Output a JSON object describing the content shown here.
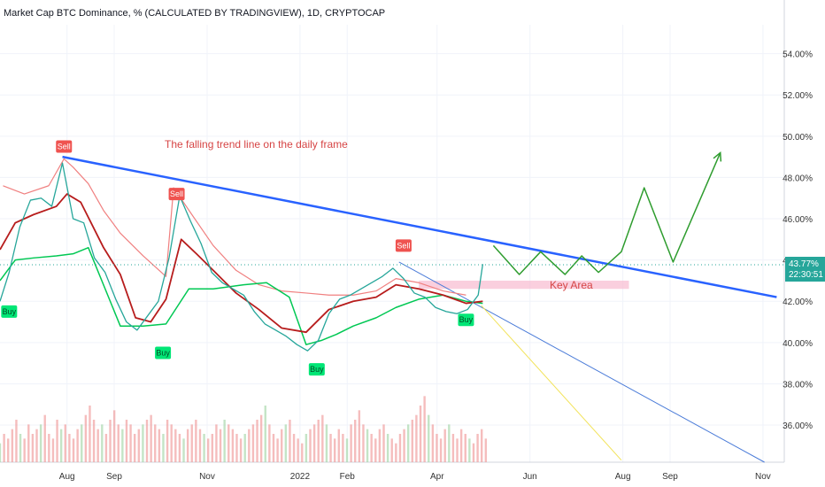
{
  "window": {
    "title": "Market Cap BTC Dominance, % (CALCULATED BY TRADINGVIEW), 1D, CRYPTOCAP"
  },
  "chart_data": {
    "type": "line",
    "title": "Market Cap BTC Dominance, % (CALCULATED BY TRADINGVIEW), 1D, CRYPTOCAP",
    "xlabel": "",
    "ylabel": "",
    "x_ticks": [
      "Aug",
      "Sep",
      "Nov",
      "2022",
      "Feb",
      "Apr",
      "Jun",
      "Aug",
      "Sep",
      "Nov"
    ],
    "y_ticks": [
      "54.00%",
      "52.00%",
      "50.00%",
      "48.00%",
      "46.00%",
      "44.00%",
      "42.00%",
      "40.00%",
      "38.00%",
      "36.00%"
    ],
    "ylim": [
      34.2,
      55.4
    ],
    "current_price": "43.77%",
    "countdown": "22:30:51",
    "annotations": {
      "trend_note": "The falling trend line on the daily frame",
      "key_area": "Key Area"
    },
    "signals": [
      {
        "label": "Sell",
        "x": "2021-07-30",
        "y": 49.5
      },
      {
        "label": "Sell",
        "x": "2021-10-12",
        "y": 47.2
      },
      {
        "label": "Sell",
        "x": "2022-03-10",
        "y": 44.7
      },
      {
        "label": "Buy",
        "x": "2021-06-24",
        "y": 41.5
      },
      {
        "label": "Buy",
        "x": "2021-10-03",
        "y": 39.5
      },
      {
        "label": "Buy",
        "x": "2022-01-12",
        "y": 38.7
      },
      {
        "label": "Buy",
        "x": "2022-04-20",
        "y": 41.1
      }
    ],
    "series": [
      {
        "name": "",
        "color": "#2962ff",
        "points": [
          [
            "2021-07-29",
            49.0
          ],
          [
            "2022-11-10",
            42.2
          ]
        ]
      },
      {
        "name": "",
        "color": "#2e9c2e",
        "points": [
          [
            "2022-05-08",
            44.7
          ],
          [
            "2022-05-25",
            43.3
          ],
          [
            "2022-06-08",
            44.4
          ],
          [
            "2022-06-24",
            43.3
          ],
          [
            "2022-07-05",
            44.2
          ],
          [
            "2022-07-16",
            43.4
          ],
          [
            "2022-07-31",
            44.4
          ],
          [
            "2022-08-15",
            47.5
          ],
          [
            "2022-09-03",
            43.9
          ],
          [
            "2022-10-04",
            49.2
          ]
        ]
      },
      {
        "name": "",
        "color": "#4a7bd8",
        "points": [
          [
            "2022-03-07",
            43.9
          ],
          [
            "2022-11-02",
            34.2
          ]
        ]
      },
      {
        "name": "",
        "color": "#f2e35a",
        "points": [
          [
            "2022-04-30",
            41.8
          ],
          [
            "2022-07-31",
            34.3
          ]
        ]
      },
      {
        "name": "",
        "color": "#f08080",
        "points": [
          [
            "2021-06-20",
            47.6
          ],
          [
            "2021-07-04",
            47.2
          ],
          [
            "2021-07-20",
            47.6
          ],
          [
            "2021-07-30",
            48.9
          ],
          [
            "2021-08-05",
            48.5
          ],
          [
            "2021-08-15",
            47.7
          ],
          [
            "2021-08-25",
            46.4
          ],
          [
            "2021-09-05",
            45.3
          ],
          [
            "2021-09-20",
            44.2
          ],
          [
            "2021-10-05",
            43.2
          ],
          [
            "2021-10-10",
            47.5
          ],
          [
            "2021-10-22",
            46.2
          ],
          [
            "2021-11-05",
            44.7
          ],
          [
            "2021-11-20",
            43.5
          ],
          [
            "2021-12-05",
            42.8
          ],
          [
            "2021-12-20",
            42.5
          ],
          [
            "2022-01-05",
            42.4
          ],
          [
            "2022-01-20",
            42.3
          ],
          [
            "2022-02-05",
            42.3
          ],
          [
            "2022-02-20",
            42.5
          ],
          [
            "2022-03-05",
            43.1
          ],
          [
            "2022-03-20",
            42.9
          ],
          [
            "2022-04-05",
            42.5
          ],
          [
            "2022-04-20",
            42.3
          ]
        ]
      },
      {
        "name": "",
        "color": "#00c853",
        "points": [
          [
            "2021-06-18",
            43.0
          ],
          [
            "2021-06-28",
            44.0
          ],
          [
            "2021-07-10",
            44.1
          ],
          [
            "2021-07-25",
            44.2
          ],
          [
            "2021-08-05",
            44.3
          ],
          [
            "2021-08-15",
            44.6
          ],
          [
            "2021-09-05",
            40.8
          ],
          [
            "2021-09-20",
            40.8
          ],
          [
            "2021-10-05",
            40.9
          ],
          [
            "2021-10-20",
            42.6
          ],
          [
            "2021-11-05",
            42.6
          ],
          [
            "2021-11-25",
            42.8
          ],
          [
            "2021-12-10",
            42.9
          ],
          [
            "2021-12-25",
            42.2
          ],
          [
            "2022-01-05",
            39.9
          ],
          [
            "2022-01-15",
            40.1
          ],
          [
            "2022-01-25",
            40.4
          ],
          [
            "2022-02-05",
            40.8
          ],
          [
            "2022-02-20",
            41.2
          ],
          [
            "2022-03-05",
            41.7
          ],
          [
            "2022-03-20",
            42.1
          ],
          [
            "2022-04-05",
            42.3
          ],
          [
            "2022-04-20",
            42.0
          ],
          [
            "2022-05-01",
            41.9
          ]
        ]
      },
      {
        "name": "",
        "color": "#b71c1c",
        "points": [
          [
            "2021-06-18",
            44.5
          ],
          [
            "2021-06-28",
            45.8
          ],
          [
            "2021-07-10",
            46.2
          ],
          [
            "2021-07-25",
            46.6
          ],
          [
            "2021-08-01",
            47.2
          ],
          [
            "2021-08-10",
            46.8
          ],
          [
            "2021-08-25",
            44.6
          ],
          [
            "2021-09-05",
            43.3
          ],
          [
            "2021-09-15",
            41.2
          ],
          [
            "2021-09-25",
            41.0
          ],
          [
            "2021-10-05",
            42.1
          ],
          [
            "2021-10-15",
            45.0
          ],
          [
            "2021-10-25",
            44.3
          ],
          [
            "2021-11-05",
            43.5
          ],
          [
            "2021-11-20",
            42.4
          ],
          [
            "2021-12-05",
            41.6
          ],
          [
            "2021-12-20",
            40.7
          ],
          [
            "2022-01-05",
            40.5
          ],
          [
            "2022-01-20",
            41.6
          ],
          [
            "2022-02-05",
            42.0
          ],
          [
            "2022-02-20",
            42.2
          ],
          [
            "2022-03-05",
            42.8
          ],
          [
            "2022-03-20",
            42.6
          ],
          [
            "2022-04-05",
            42.3
          ],
          [
            "2022-04-20",
            41.9
          ],
          [
            "2022-05-01",
            42.0
          ]
        ]
      },
      {
        "name": "",
        "color": "#26a69a",
        "points": [
          [
            "2021-06-18",
            42.0
          ],
          [
            "2021-06-24",
            43.4
          ],
          [
            "2021-07-01",
            45.6
          ],
          [
            "2021-07-08",
            46.9
          ],
          [
            "2021-07-15",
            47.0
          ],
          [
            "2021-07-22",
            46.6
          ],
          [
            "2021-07-29",
            48.7
          ],
          [
            "2021-08-05",
            46.0
          ],
          [
            "2021-08-12",
            45.8
          ],
          [
            "2021-08-19",
            44.1
          ],
          [
            "2021-08-26",
            43.4
          ],
          [
            "2021-09-02",
            42.1
          ],
          [
            "2021-09-09",
            41.0
          ],
          [
            "2021-09-16",
            40.6
          ],
          [
            "2021-09-23",
            41.3
          ],
          [
            "2021-09-30",
            42.0
          ],
          [
            "2021-10-07",
            44.1
          ],
          [
            "2021-10-14",
            47.1
          ],
          [
            "2021-10-21",
            45.9
          ],
          [
            "2021-10-28",
            44.8
          ],
          [
            "2021-11-04",
            43.4
          ],
          [
            "2021-11-11",
            42.9
          ],
          [
            "2021-11-18",
            42.6
          ],
          [
            "2021-11-25",
            42.3
          ],
          [
            "2021-12-02",
            41.5
          ],
          [
            "2021-12-09",
            40.9
          ],
          [
            "2021-12-16",
            40.6
          ],
          [
            "2021-12-23",
            40.3
          ],
          [
            "2021-12-30",
            39.9
          ],
          [
            "2022-01-06",
            39.6
          ],
          [
            "2022-01-13",
            40.1
          ],
          [
            "2022-01-20",
            41.4
          ],
          [
            "2022-01-27",
            42.1
          ],
          [
            "2022-02-03",
            42.3
          ],
          [
            "2022-02-10",
            42.6
          ],
          [
            "2022-02-17",
            42.9
          ],
          [
            "2022-02-24",
            43.2
          ],
          [
            "2022-03-03",
            43.6
          ],
          [
            "2022-03-10",
            43.1
          ],
          [
            "2022-03-17",
            42.4
          ],
          [
            "2022-03-24",
            42.2
          ],
          [
            "2022-03-31",
            41.7
          ],
          [
            "2022-04-07",
            41.5
          ],
          [
            "2022-04-14",
            41.4
          ],
          [
            "2022-04-21",
            41.6
          ],
          [
            "2022-04-28",
            42.3
          ],
          [
            "2022-05-01",
            43.8
          ]
        ]
      }
    ],
    "volume": {
      "color": "#ef9a9a",
      "values": [
        4,
        6,
        5,
        7,
        9,
        6,
        5,
        8,
        6,
        7,
        8,
        10,
        6,
        5,
        9,
        7,
        8,
        6,
        5,
        7,
        8,
        10,
        12,
        9,
        7,
        8,
        6,
        9,
        11,
        8,
        7,
        9,
        8,
        6,
        7,
        8,
        9,
        10,
        8,
        7,
        6,
        9,
        8,
        7,
        6,
        5,
        7,
        8,
        9,
        7,
        6,
        5,
        6,
        8,
        7,
        9,
        8,
        7,
        6,
        5,
        6,
        7,
        8,
        9,
        10,
        12,
        8,
        6,
        5,
        7,
        8,
        9,
        6,
        5,
        4,
        6,
        7,
        8,
        9,
        10,
        8,
        6,
        5,
        7,
        6,
        5,
        8,
        9,
        11,
        8,
        7,
        6,
        5,
        7,
        8,
        6,
        5,
        4,
        6,
        7,
        8,
        9,
        10,
        12,
        14,
        10,
        8,
        6,
        5,
        7,
        8,
        6,
        5,
        7,
        6,
        5,
        4,
        6,
        7,
        5
      ]
    }
  }
}
